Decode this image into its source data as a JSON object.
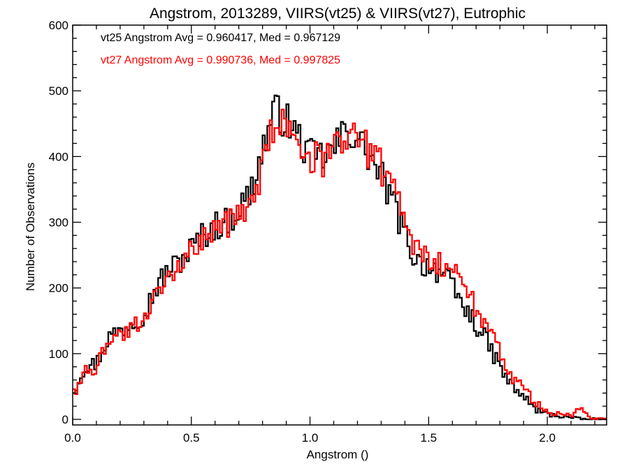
{
  "chart_data": {
    "type": "histogram-step",
    "title": "Angstrom, 2013289, VIIRS(vt25) & VIIRS(vt27), Eutrophic",
    "xlabel": "Angstrom ()",
    "ylabel": "Number of Observations",
    "xlim": [
      0.0,
      2.25
    ],
    "ylim": [
      0,
      600
    ],
    "x_ticks": [
      0.0,
      0.5,
      1.0,
      1.5,
      2.0
    ],
    "x_tick_labels": [
      "0.0",
      "0.5",
      "1.0",
      "1.5",
      "2.0"
    ],
    "y_ticks": [
      0,
      100,
      200,
      300,
      400,
      500,
      600
    ],
    "y_tick_labels": [
      "0",
      "100",
      "200",
      "300",
      "400",
      "500",
      "600"
    ],
    "bin_width": 0.01,
    "annotations": [
      {
        "text": "vt25 Angstrom Avg = 0.960417, Med = 0.967129",
        "color": "#000000"
      },
      {
        "text": "vt27 Angstrom Avg = 0.990736, Med = 0.997825",
        "color": "#ff0000"
      }
    ],
    "series": [
      {
        "color": "#000000",
        "points": [
          [
            0.0,
            40
          ],
          [
            0.05,
            80
          ],
          [
            0.1,
            85
          ],
          [
            0.15,
            125
          ],
          [
            0.2,
            135
          ],
          [
            0.25,
            150
          ],
          [
            0.3,
            160
          ],
          [
            0.35,
            200
          ],
          [
            0.4,
            225
          ],
          [
            0.45,
            240
          ],
          [
            0.5,
            260
          ],
          [
            0.55,
            280
          ],
          [
            0.6,
            295
          ],
          [
            0.65,
            300
          ],
          [
            0.7,
            320
          ],
          [
            0.75,
            345
          ],
          [
            0.8,
            410
          ],
          [
            0.85,
            470
          ],
          [
            0.9,
            455
          ],
          [
            0.95,
            430
          ],
          [
            1.0,
            400
          ],
          [
            1.05,
            400
          ],
          [
            1.1,
            410
          ],
          [
            1.15,
            440
          ],
          [
            1.2,
            430
          ],
          [
            1.25,
            400
          ],
          [
            1.3,
            370
          ],
          [
            1.35,
            330
          ],
          [
            1.4,
            280
          ],
          [
            1.45,
            240
          ],
          [
            1.5,
            235
          ],
          [
            1.55,
            225
          ],
          [
            1.6,
            200
          ],
          [
            1.65,
            170
          ],
          [
            1.7,
            145
          ],
          [
            1.75,
            115
          ],
          [
            1.8,
            80
          ],
          [
            1.85,
            50
          ],
          [
            1.9,
            35
          ],
          [
            1.95,
            15
          ],
          [
            2.0,
            8
          ],
          [
            2.05,
            5
          ],
          [
            2.1,
            3
          ],
          [
            2.15,
            0
          ],
          [
            2.25,
            0
          ]
        ]
      },
      {
        "color": "#ff0000",
        "points": [
          [
            0.0,
            35
          ],
          [
            0.05,
            75
          ],
          [
            0.1,
            80
          ],
          [
            0.15,
            115
          ],
          [
            0.2,
            125
          ],
          [
            0.25,
            140
          ],
          [
            0.3,
            150
          ],
          [
            0.35,
            185
          ],
          [
            0.4,
            210
          ],
          [
            0.45,
            230
          ],
          [
            0.5,
            255
          ],
          [
            0.55,
            275
          ],
          [
            0.6,
            290
          ],
          [
            0.65,
            300
          ],
          [
            0.7,
            305
          ],
          [
            0.75,
            330
          ],
          [
            0.8,
            380
          ],
          [
            0.85,
            450
          ],
          [
            0.9,
            455
          ],
          [
            0.95,
            425
          ],
          [
            1.0,
            400
          ],
          [
            1.05,
            395
          ],
          [
            1.1,
            405
          ],
          [
            1.15,
            435
          ],
          [
            1.2,
            430
          ],
          [
            1.25,
            405
          ],
          [
            1.3,
            385
          ],
          [
            1.35,
            345
          ],
          [
            1.4,
            300
          ],
          [
            1.45,
            260
          ],
          [
            1.5,
            250
          ],
          [
            1.55,
            240
          ],
          [
            1.6,
            225
          ],
          [
            1.65,
            200
          ],
          [
            1.7,
            170
          ],
          [
            1.75,
            140
          ],
          [
            1.8,
            100
          ],
          [
            1.85,
            65
          ],
          [
            1.9,
            45
          ],
          [
            1.95,
            25
          ],
          [
            2.0,
            10
          ],
          [
            2.05,
            8
          ],
          [
            2.1,
            5
          ],
          [
            2.15,
            18
          ],
          [
            2.18,
            0
          ],
          [
            2.25,
            0
          ]
        ]
      }
    ]
  }
}
